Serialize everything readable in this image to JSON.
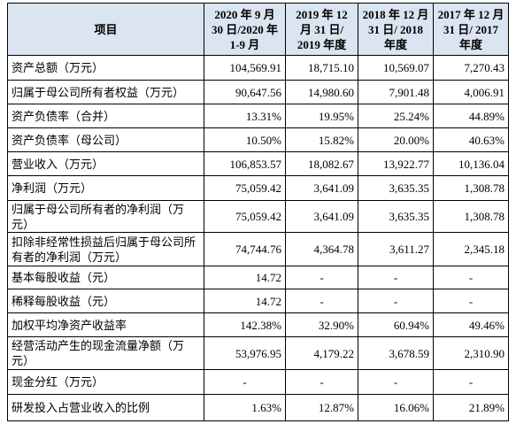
{
  "table": {
    "header": [
      "项目",
      "2020 年 9 月 30 日/2020 年 1-9 月",
      "2019 年 12 月 31 日/ 2019 年度",
      "2018 年 12 月 31 日/ 2018 年度",
      "2017 年 12 月 31 日/ 2017 年度"
    ],
    "rows": [
      [
        "资产总额（万元）",
        "104,569.91",
        "18,715.10",
        "10,569.07",
        "7,270.43"
      ],
      [
        "归属于母公司所有者权益（万元）",
        "90,647.56",
        "14,980.60",
        "7,901.48",
        "4,006.91"
      ],
      [
        "资产负债率（合并）",
        "13.31%",
        "19.95%",
        "25.24%",
        "44.89%"
      ],
      [
        "资产负债率（母公司）",
        "10.50%",
        "15.82%",
        "20.00%",
        "40.63%"
      ],
      [
        "营业收入（万元）",
        "106,853.57",
        "18,082.67",
        "13,922.77",
        "10,136.04"
      ],
      [
        "净利润（万元）",
        "75,059.42",
        "3,641.09",
        "3,635.35",
        "1,308.78"
      ],
      [
        "归属于母公司所有者的净利润（万元）",
        "75,059.42",
        "3,641.09",
        "3,635.35",
        "1,308.78"
      ],
      [
        "扣除非经常性损益后归属于母公司所有者的净利润（万元）",
        "74,744.76",
        "4,364.78",
        "3,611.27",
        "2,345.18"
      ],
      [
        "基本每股收益（元）",
        "14.72",
        "-",
        "-",
        "-"
      ],
      [
        "稀释每股收益（元）",
        "14.72",
        "-",
        "-",
        "-"
      ],
      [
        "加权平均净资产收益率",
        "142.38%",
        "32.90%",
        "60.94%",
        "49.46%"
      ],
      [
        "经营活动产生的现金流量净额（万元）",
        "53,976.95",
        "4,179.22",
        "3,678.59",
        "2,310.90"
      ],
      [
        "现金分红（万元）",
        "-",
        "-",
        "-",
        "-"
      ],
      [
        "研发投入占营业收入的比例",
        "1.63%",
        "12.87%",
        "16.06%",
        "21.89%"
      ]
    ]
  }
}
